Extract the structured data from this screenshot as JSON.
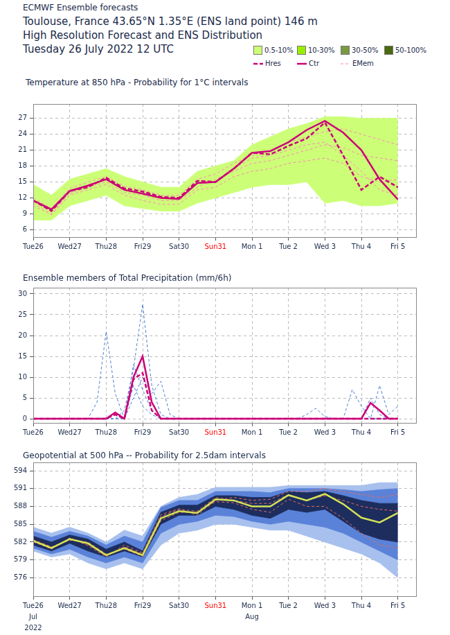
{
  "header": {
    "lines": [
      "ECMWF Ensemble forecasts",
      "Toulouse, France 43.65°N 1.35°E (ENS land point) 146 m",
      "High Resolution Forecast and ENS Distribution",
      "Tuesday 26 July 2022 12 UTC"
    ],
    "key": [
      {
        "name": "0.5-10%",
        "color": "#ccff77",
        "marker": "square"
      },
      {
        "name": "10-30%",
        "color": "#99ee00",
        "marker": "square"
      },
      {
        "name": "30-50%",
        "color": "#7a9a40",
        "marker": "square"
      },
      {
        "name": "50-100%",
        "color": "#4a6a10",
        "marker": "square"
      },
      {
        "name": "Hres",
        "color": "#cc0077",
        "line_style": "dashed"
      },
      {
        "name": "Ctr",
        "color": "#cc0077",
        "line_style": "solid"
      },
      {
        "name": "EMem",
        "color": "#ff88bb",
        "line_style": "fine_dashed"
      }
    ]
  },
  "chart_data": [
    {
      "type": "line",
      "title": "Temperature at 850 hPa - Probability for 1°C intervals",
      "x": [
        0,
        12,
        24,
        36,
        48,
        60,
        72,
        84,
        96,
        108,
        120,
        132,
        144,
        156,
        168,
        180,
        192,
        204,
        216,
        228,
        240
      ],
      "xlim": [
        0,
        252
      ],
      "xticks": [
        {
          "value": 0,
          "label": "Tue26"
        },
        {
          "value": 24,
          "label": "Wed27"
        },
        {
          "value": 48,
          "label": "Thu28"
        },
        {
          "value": 72,
          "label": "Fri29"
        },
        {
          "value": 96,
          "label": "Sat30"
        },
        {
          "value": 120,
          "label": "Sun31",
          "color": "#ff0000"
        },
        {
          "value": 144,
          "label": "Mon 1"
        },
        {
          "value": 168,
          "label": "Tue 2"
        },
        {
          "value": 192,
          "label": "Wed 3"
        },
        {
          "value": 216,
          "label": "Thu 4"
        },
        {
          "value": 240,
          "label": "Fri 5"
        }
      ],
      "ylim": [
        4.6,
        29.7
      ],
      "yticks": [
        6,
        9,
        12,
        15,
        18,
        21,
        24,
        27
      ],
      "grid": true,
      "series": [
        {
          "name": "0.5-10%",
          "type": "band",
          "color": "#ccff77",
          "lower": [
            7.8,
            7.8,
            10.5,
            11.5,
            12.5,
            10.5,
            10,
            9.5,
            9.5,
            11,
            12,
            13,
            14,
            14.5,
            14.5,
            15,
            11,
            11.5,
            10.5,
            10.5,
            11
          ],
          "upper": [
            14.5,
            12.5,
            15.5,
            16.5,
            17.5,
            16,
            15,
            14,
            14,
            17,
            18,
            19,
            22,
            23.5,
            25,
            26,
            27.3,
            27.3,
            27,
            27,
            27
          ]
        },
        {
          "name": "EMem",
          "color": "#ff88bb",
          "line_style": "fine_dashed",
          "values": [
            11,
            9,
            12.8,
            14,
            15,
            13,
            12.5,
            11.5,
            11.5,
            14,
            15.5,
            17,
            18.5,
            19,
            20,
            21,
            22,
            21.5,
            20,
            19.5,
            19
          ]
        },
        {
          "name": "EMem",
          "color": "#ff88bb",
          "line_style": "fine_dashed",
          "values": [
            10.5,
            8.8,
            12.5,
            13.5,
            14.5,
            12.5,
            11.5,
            10.8,
            10.8,
            13.5,
            14,
            16,
            17,
            17.5,
            18.5,
            19,
            19.5,
            18.5,
            16,
            15,
            15.5
          ]
        },
        {
          "name": "EMem",
          "color": "#ff88bb",
          "line_style": "fine_dashed",
          "values": [
            12,
            10,
            13.8,
            15,
            16,
            14.2,
            13.5,
            12.5,
            12.5,
            15.5,
            16.5,
            18.5,
            20,
            21,
            22.5,
            23.5,
            24.5,
            25,
            24,
            23,
            22
          ]
        },
        {
          "name": "EMem",
          "color": "#ff88bb",
          "line_style": "fine_dashed",
          "values": [
            11.5,
            9.5,
            13,
            14.5,
            15.5,
            13.5,
            12.8,
            12,
            12,
            14.8,
            15,
            17.5,
            19.5,
            20,
            21,
            22,
            22.5,
            20,
            17,
            13.5,
            12.5
          ]
        },
        {
          "name": "Hres",
          "color": "#cc0077",
          "line_style": "dashed",
          "values": [
            11.5,
            9.5,
            13.3,
            14.0,
            15.8,
            13.8,
            13.2,
            12.2,
            12.0,
            15.2,
            15.0,
            17.5,
            20.5,
            20.2,
            21.8,
            23.2,
            26.2,
            20.0,
            13.5,
            16.0,
            14.0
          ]
        },
        {
          "name": "Ctr",
          "color": "#cc0077",
          "line_style": "solid",
          "values": [
            11.5,
            9.8,
            13.3,
            14.3,
            15.5,
            13.5,
            12.8,
            12.0,
            11.8,
            14.8,
            15.0,
            17.5,
            20.5,
            20.8,
            22.5,
            24.8,
            26.5,
            24.3,
            21.0,
            15.5,
            11.7
          ]
        }
      ]
    },
    {
      "type": "line",
      "title": "Ensemble members of Total Precipitation (mm/6h)",
      "x": [
        0,
        6,
        12,
        18,
        24,
        30,
        36,
        42,
        48,
        54,
        60,
        66,
        72,
        78,
        84,
        90,
        96,
        102,
        108,
        114,
        120,
        126,
        132,
        138,
        144,
        150,
        156,
        162,
        168,
        174,
        180,
        186,
        192,
        198,
        204,
        210,
        216,
        222,
        228,
        234,
        240
      ],
      "xlim": [
        0,
        252
      ],
      "xticks": [
        {
          "value": 0,
          "label": "Tue26"
        },
        {
          "value": 24,
          "label": "Wed27"
        },
        {
          "value": 48,
          "label": "Thu28"
        },
        {
          "value": 72,
          "label": "Fri29"
        },
        {
          "value": 96,
          "label": "Sat30"
        },
        {
          "value": 120,
          "label": "Sun31",
          "color": "#ff0000"
        },
        {
          "value": 144,
          "label": "Mon 1"
        },
        {
          "value": 168,
          "label": "Tue 2"
        },
        {
          "value": 192,
          "label": "Wed 3"
        },
        {
          "value": 216,
          "label": "Thu 4"
        },
        {
          "value": 240,
          "label": "Fri 5"
        }
      ],
      "ylim": [
        -1,
        31.5
      ],
      "yticks": [
        0,
        5,
        10,
        15,
        20,
        25,
        30
      ],
      "grid": true,
      "series": [
        {
          "name": "EMem",
          "color": "#4a7fd4",
          "line_style": "fine_dashed",
          "values": [
            0,
            0,
            0,
            0,
            0,
            0,
            0,
            4,
            21,
            6,
            0,
            8,
            3,
            1,
            0,
            0,
            0,
            0,
            0,
            0,
            0,
            0,
            0,
            0,
            0,
            0,
            0,
            0,
            0,
            0,
            0,
            0,
            0,
            0,
            0,
            0,
            0,
            0,
            0,
            0,
            0
          ]
        },
        {
          "name": "EMem",
          "color": "#4a7fd4",
          "line_style": "fine_dashed",
          "values": [
            0,
            0,
            0,
            0,
            0,
            0,
            0,
            0,
            0,
            0,
            2,
            12,
            27.5,
            8,
            1,
            0,
            0,
            0,
            0,
            0,
            0,
            0,
            0,
            0,
            0,
            0,
            0,
            0,
            0,
            0,
            0,
            0,
            0,
            0,
            0,
            0,
            0,
            0,
            0,
            0,
            0
          ]
        },
        {
          "name": "EMem",
          "color": "#4a7fd4",
          "line_style": "fine_dashed",
          "values": [
            0,
            0,
            0,
            0,
            0,
            0,
            0,
            0,
            0,
            0,
            0,
            5,
            10,
            6,
            9,
            1,
            0,
            0,
            0,
            0,
            0,
            0,
            0,
            0,
            0,
            0,
            0,
            0,
            0,
            0,
            0,
            0,
            0,
            0,
            0,
            7,
            3,
            0,
            8,
            1,
            3
          ]
        },
        {
          "name": "EMem",
          "color": "#4a7fd4",
          "line_style": "fine_dashed",
          "values": [
            0,
            0,
            0,
            0,
            0,
            0,
            0,
            0,
            0,
            0,
            0,
            13,
            7,
            2,
            0,
            0,
            0,
            0,
            0,
            0,
            0,
            0,
            0,
            0,
            0,
            0,
            0,
            0,
            0,
            0,
            1,
            2.5,
            0.5,
            0,
            0,
            0,
            0,
            5,
            1,
            0,
            0
          ]
        },
        {
          "name": "Hres",
          "color": "#cc0077",
          "line_style": "dashed",
          "values": [
            0,
            0,
            0,
            0,
            0,
            0,
            0,
            0,
            0,
            1,
            0,
            9.5,
            11,
            2,
            0,
            0,
            0,
            0,
            0,
            0,
            0,
            0,
            0,
            0,
            0,
            0,
            0,
            0,
            0,
            0,
            0,
            0,
            0,
            0,
            0,
            0,
            0,
            0,
            0,
            0,
            0
          ]
        },
        {
          "name": "Ctr",
          "color": "#cc0077",
          "line_style": "solid",
          "values": [
            0,
            0,
            0,
            0,
            0,
            0,
            0,
            0,
            0,
            1.5,
            0,
            10,
            15,
            4,
            0,
            0,
            0,
            0,
            0,
            0,
            0,
            0,
            0,
            0,
            0,
            0,
            0,
            0,
            0,
            0,
            0,
            0,
            0,
            0,
            0,
            0,
            0,
            3.8,
            2,
            0,
            0
          ]
        }
      ]
    },
    {
      "type": "line",
      "title": "Geopotential at 500 hPa -- Probability for 2.5dam intervals",
      "x": [
        0,
        12,
        24,
        36,
        48,
        60,
        72,
        84,
        96,
        108,
        120,
        132,
        144,
        156,
        168,
        180,
        192,
        204,
        216,
        228,
        240
      ],
      "xlim": [
        0,
        252
      ],
      "xticks": [
        {
          "value": 0,
          "label": "Tue26"
        },
        {
          "value": 24,
          "label": "Wed27"
        },
        {
          "value": 48,
          "label": "Thu28"
        },
        {
          "value": 72,
          "label": "Fri29"
        },
        {
          "value": 96,
          "label": "Sat30"
        },
        {
          "value": 120,
          "label": "Sun31",
          "color": "#ff0000"
        },
        {
          "value": 144,
          "label": "Mon 1"
        },
        {
          "value": 168,
          "label": "Tue 2"
        },
        {
          "value": 192,
          "label": "Wed 3"
        },
        {
          "value": 216,
          "label": "Thu 4"
        },
        {
          "value": 240,
          "label": "Fri 5"
        }
      ],
      "ylim": [
        572.9,
        595.4
      ],
      "yticks": [
        576,
        579,
        582,
        585,
        588,
        591,
        594
      ],
      "grid": true,
      "annotations": [
        {
          "x": 0,
          "text": [
            "Jul",
            "2022"
          ]
        },
        {
          "x": 144,
          "text": [
            "Aug"
          ]
        }
      ],
      "series": [
        {
          "name": "0.5-10%",
          "type": "band",
          "color": "#a7c0ee",
          "lower": [
            580.5,
            579.5,
            580,
            578.5,
            577.5,
            578.5,
            577.5,
            581.5,
            583.5,
            584,
            585,
            585,
            584.5,
            584,
            584,
            583,
            582,
            581,
            580,
            578.5,
            576
          ],
          "upper": [
            584.5,
            583.5,
            584.5,
            583.5,
            582,
            584,
            583,
            588,
            589.5,
            590,
            591.2,
            591.2,
            591.2,
            591.2,
            591.5,
            591.5,
            591.5,
            591.5,
            591.5,
            592,
            592
          ]
        },
        {
          "name": "10-30%",
          "type": "band",
          "color": "#5a82d8",
          "lower": [
            581,
            580,
            580.8,
            579.5,
            578.5,
            579.5,
            578.5,
            583.5,
            585,
            585.5,
            586.5,
            586.3,
            585.5,
            585,
            585.5,
            585,
            584.5,
            583.5,
            582,
            580.5,
            579
          ],
          "upper": [
            583.8,
            582.8,
            583.8,
            583,
            581.5,
            583,
            582,
            587.8,
            589,
            589,
            590.5,
            590.5,
            590.5,
            590.3,
            591,
            591,
            591,
            590.8,
            590.5,
            590.8,
            591
          ]
        },
        {
          "name": "50-100%",
          "type": "band",
          "color": "#1c2d5e",
          "lower": [
            581.5,
            580.5,
            581.8,
            580.5,
            579.5,
            580.5,
            579.5,
            585,
            586.5,
            586.5,
            588,
            587.5,
            586.5,
            586,
            587.5,
            587,
            587.5,
            585.5,
            583.5,
            582.5,
            582
          ],
          "upper": [
            583,
            582,
            583.2,
            582.5,
            580.8,
            582,
            580.5,
            587,
            588.2,
            588.2,
            589.8,
            589.8,
            589.5,
            589.5,
            590.5,
            590.3,
            590.5,
            589.8,
            589,
            588.5,
            588.5
          ]
        },
        {
          "name": "EMem",
          "color": "#ee6a55",
          "line_style": "fine_dashed",
          "values": [
            582,
            581,
            582.6,
            581.6,
            579.7,
            581.2,
            580,
            586.3,
            587.5,
            587.2,
            589.5,
            589,
            588.5,
            588.5,
            590,
            589,
            589.8,
            589,
            588,
            587.5,
            587.2
          ]
        },
        {
          "name": "EMem",
          "color": "#ee6a55",
          "line_style": "fine_dashed",
          "values": [
            582.4,
            581.2,
            582.3,
            582,
            580,
            580.8,
            579.6,
            585.6,
            587,
            587,
            588.8,
            588.6,
            587.5,
            587,
            589.2,
            588,
            588,
            586,
            583.5,
            581.5,
            581
          ]
        },
        {
          "name": "EMem",
          "color": "#ee6a55",
          "line_style": "fine_dashed",
          "values": [
            582.1,
            580.8,
            582.7,
            581.4,
            579.5,
            581.5,
            580.2,
            586.6,
            587.6,
            586.5,
            589,
            589.5,
            589,
            589.2,
            590.5,
            590.5,
            591,
            590.5,
            590,
            589.5,
            590
          ]
        },
        {
          "name": "Ctr",
          "color": "#d4e157",
          "line_style": "solid",
          "values": [
            582.2,
            581,
            582.5,
            581.8,
            579.8,
            581,
            579.8,
            586,
            587.2,
            586.9,
            589.2,
            589,
            588,
            588,
            589.9,
            589,
            590.1,
            588.4,
            586.1,
            585.3,
            586.9
          ]
        }
      ]
    }
  ]
}
